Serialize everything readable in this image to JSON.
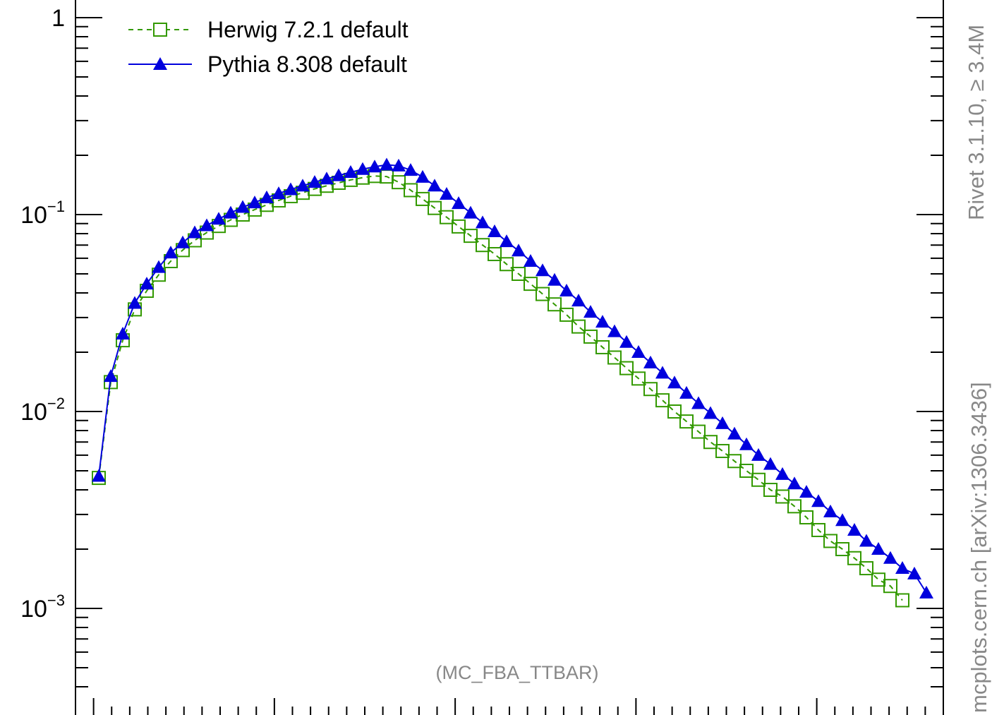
{
  "chart_data": {
    "type": "line",
    "yscale": "log",
    "ylim": [
      0.00035,
      1.2
    ],
    "xlim": [
      0,
      48
    ],
    "title": "",
    "xlabel": "",
    "ylabel": "",
    "y_tick_labels": [
      {
        "value": 1,
        "base": "1",
        "exp": ""
      },
      {
        "value": 0.1,
        "base": "10",
        "exp": "−1"
      },
      {
        "value": 0.01,
        "base": "10",
        "exp": "−2"
      },
      {
        "value": 0.001,
        "base": "10",
        "exp": "−3"
      }
    ],
    "legend_position": "top-left",
    "annotation": "(MC_FBA_TTBAR)",
    "side_text": "mcplots.cern.ch [arXiv:1306.3436]",
    "side_text_top": "Rivet 3.1.10, ≥ 3.4M",
    "colors": {
      "herwig": "#339900",
      "pythia": "#0000dd"
    },
    "series": [
      {
        "name": "Herwig 7.2.1 default",
        "marker": "open-square",
        "line": "dashed",
        "values": [
          0.0046,
          0.0141,
          0.023,
          0.033,
          0.041,
          0.0495,
          0.058,
          0.066,
          0.074,
          0.081,
          0.0875,
          0.094,
          0.1,
          0.106,
          0.112,
          0.118,
          0.124,
          0.129,
          0.135,
          0.14,
          0.145,
          0.15,
          0.154,
          0.157,
          0.156,
          0.146,
          0.133,
          0.12,
          0.108,
          0.097,
          0.087,
          0.078,
          0.07,
          0.063,
          0.056,
          0.05,
          0.0445,
          0.0395,
          0.035,
          0.031,
          0.027,
          0.024,
          0.0212,
          0.0188,
          0.0166,
          0.0147,
          0.013,
          0.0114,
          0.01,
          0.0089,
          0.0079,
          0.007,
          0.0063,
          0.0056,
          0.005,
          0.0045,
          0.004,
          0.0037,
          0.0033,
          0.0029,
          0.0025,
          0.0022,
          0.002,
          0.0018,
          0.0016,
          0.0014,
          0.0013,
          0.0011
        ]
      },
      {
        "name": "Pythia 8.308 default",
        "marker": "filled-triangle",
        "line": "solid",
        "values": [
          0.0047,
          0.0151,
          0.0248,
          0.0355,
          0.0445,
          0.054,
          0.064,
          0.072,
          0.081,
          0.088,
          0.095,
          0.102,
          0.109,
          0.115,
          0.122,
          0.128,
          0.134,
          0.14,
          0.146,
          0.152,
          0.158,
          0.164,
          0.17,
          0.175,
          0.179,
          0.177,
          0.168,
          0.155,
          0.14,
          0.127,
          0.114,
          0.102,
          0.091,
          0.082,
          0.073,
          0.0655,
          0.058,
          0.052,
          0.0465,
          0.041,
          0.0365,
          0.032,
          0.0285,
          0.0255,
          0.0225,
          0.02,
          0.0177,
          0.0157,
          0.014,
          0.0124,
          0.011,
          0.0098,
          0.0087,
          0.0077,
          0.0068,
          0.006,
          0.0054,
          0.0048,
          0.0043,
          0.0039,
          0.0035,
          0.0031,
          0.0028,
          0.0025,
          0.0022,
          0.002,
          0.0018,
          0.0016,
          0.0015,
          0.0012
        ]
      }
    ]
  }
}
